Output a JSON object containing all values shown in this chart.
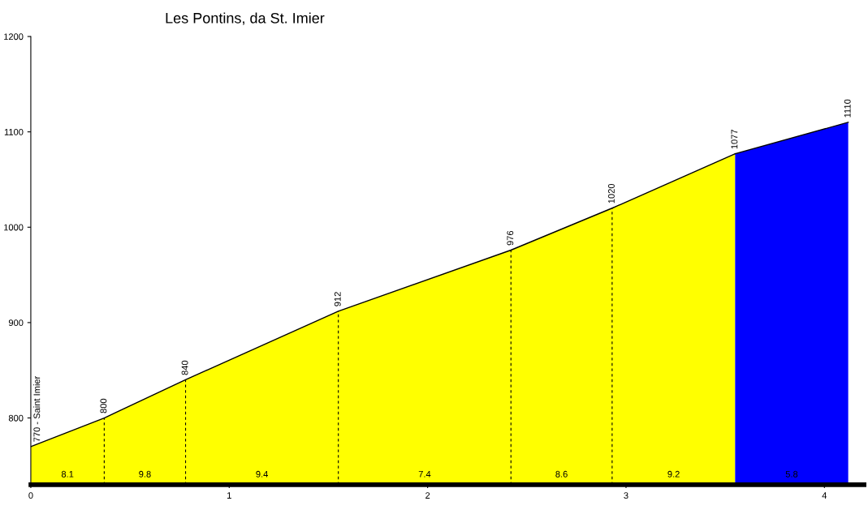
{
  "chart_data": {
    "type": "area",
    "title": "Les Pontins, da St. Imier",
    "series": [
      {
        "color": "#ffff00",
        "x": [
          0,
          0.37,
          0.78,
          1.55,
          2.42,
          2.93,
          3.55
        ],
        "values": [
          770,
          800,
          840,
          912,
          976,
          1020,
          1077
        ],
        "value_labels": [
          "770 - Saint Imier",
          "800",
          "840",
          "912",
          "976",
          "1020",
          "1077"
        ]
      },
      {
        "color": "#0000ff",
        "x": [
          3.55,
          4.12
        ],
        "values": [
          1077,
          1110
        ],
        "value_labels": [
          null,
          "1110"
        ]
      }
    ],
    "xlim": [
      0,
      4.2
    ],
    "xticks": [
      0,
      1,
      2,
      3,
      4
    ],
    "ylim": [
      730,
      1200
    ],
    "yticks": [
      800,
      900,
      1000,
      1100,
      1200
    ],
    "grid": false,
    "legend": false,
    "annotations": [
      "8.1",
      "9.8",
      "9.4",
      "7.4",
      "8.6",
      "9.2",
      "5.8"
    ]
  }
}
